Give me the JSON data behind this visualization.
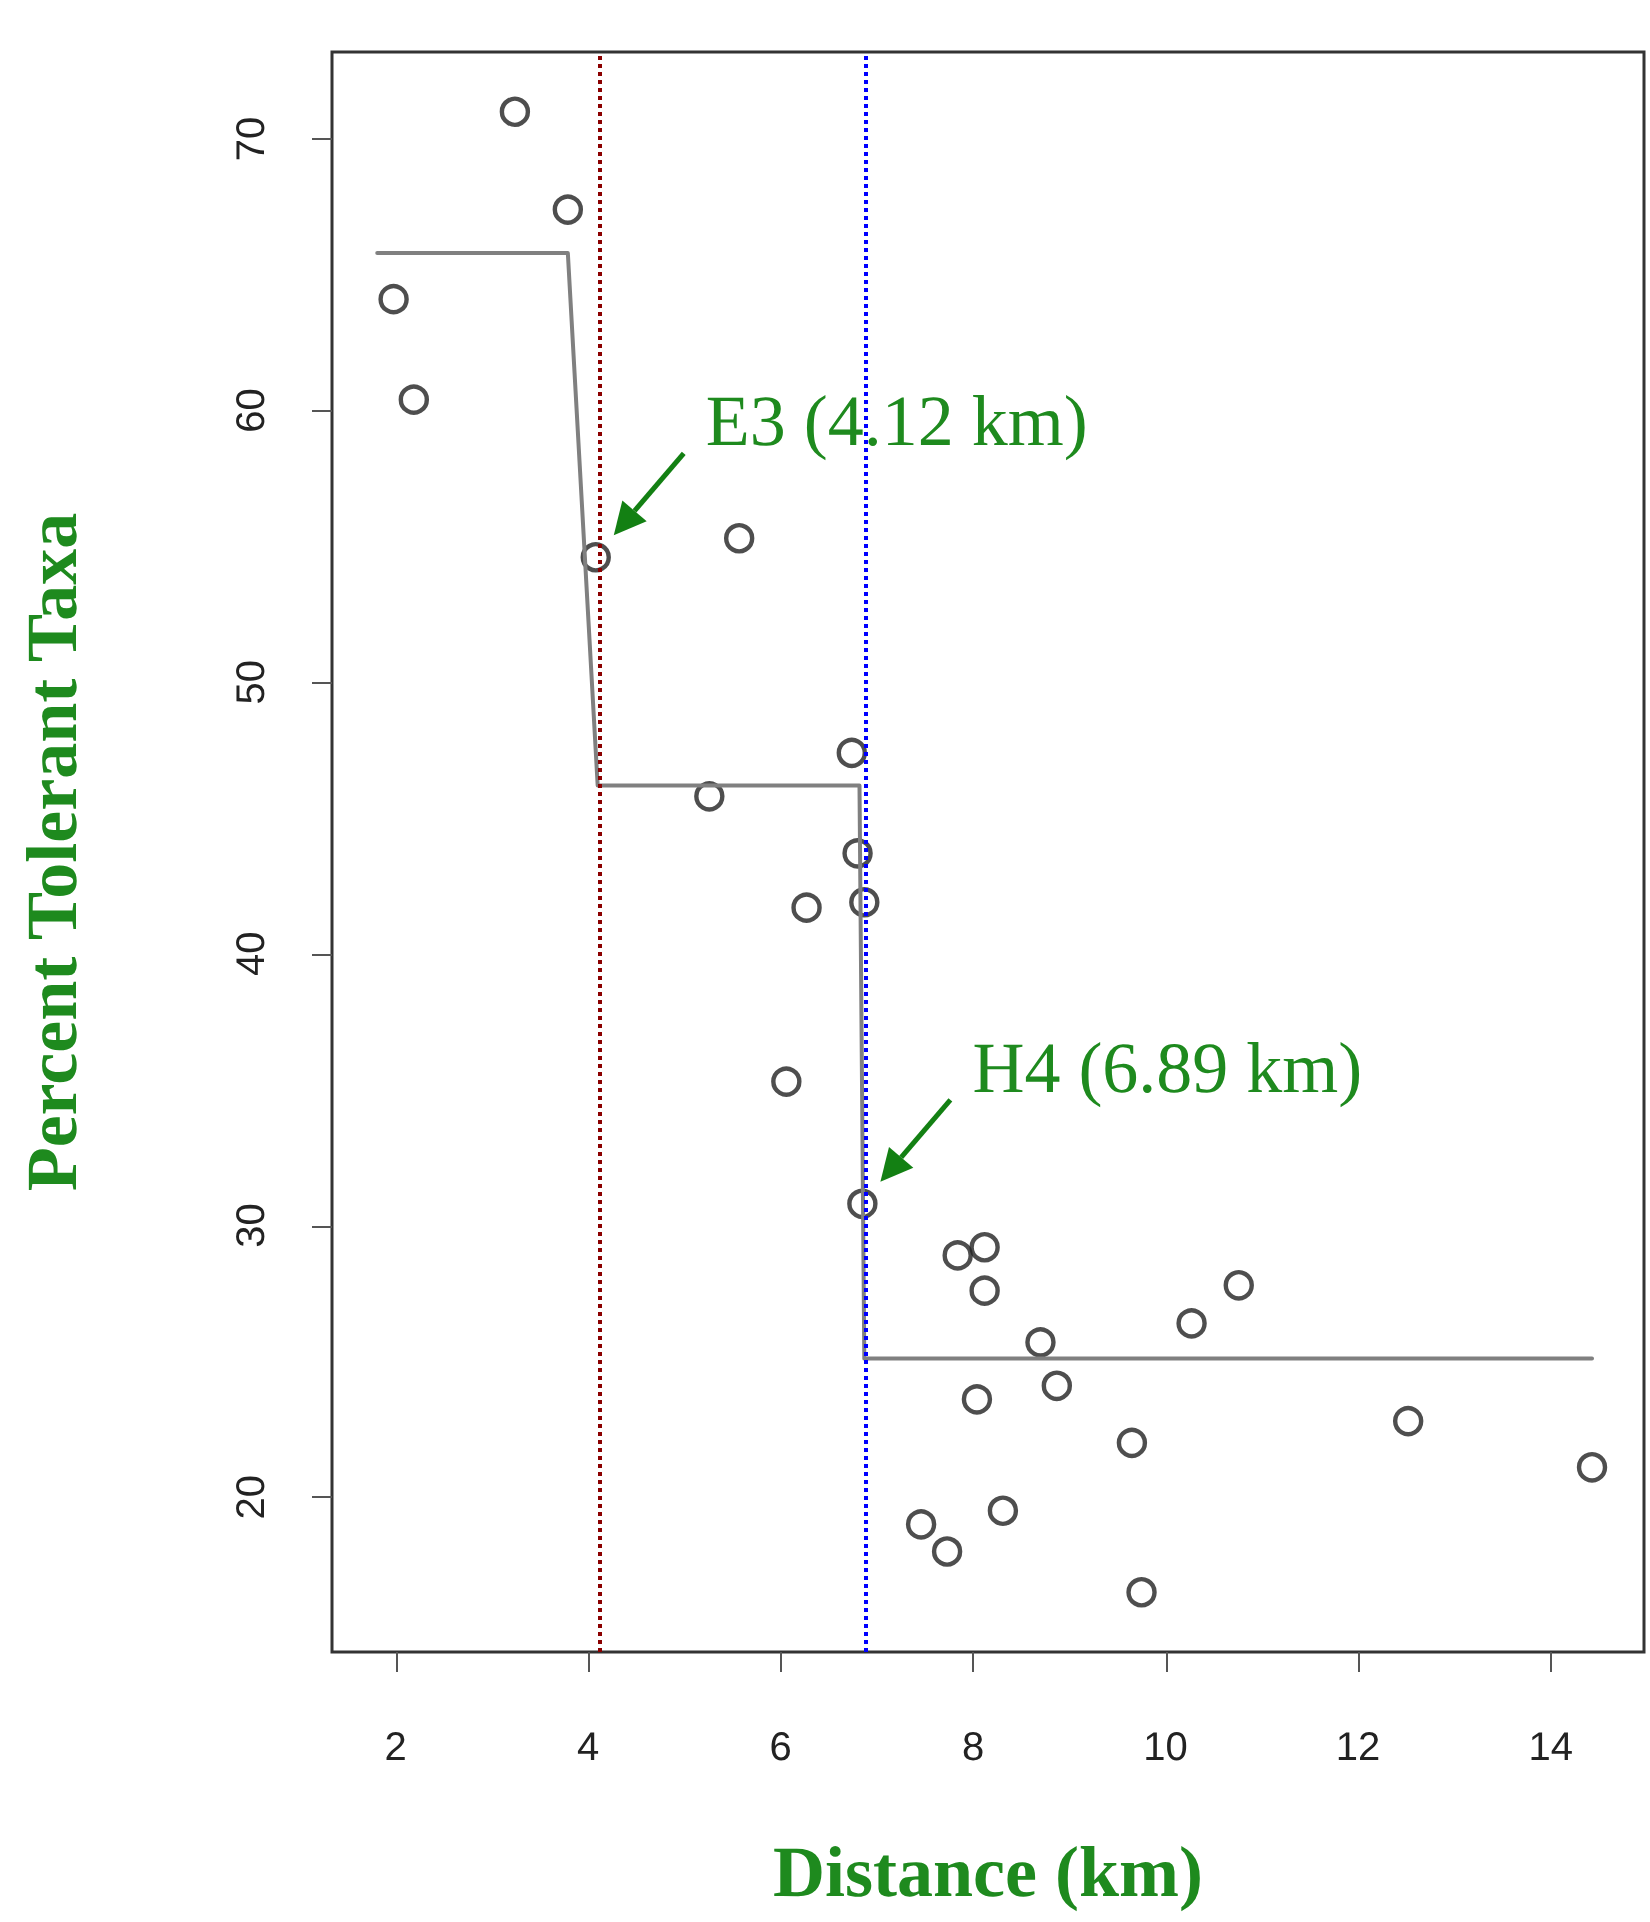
{
  "chart_data": {
    "type": "scatter",
    "xlabel": "Distance (km)",
    "ylabel": "Percent Tolerant Taxa",
    "xlim": [
      1.34,
      14.97
    ],
    "ylim": [
      14.3,
      73.2
    ],
    "xticks": [
      2,
      4,
      6,
      8,
      10,
      12,
      14
    ],
    "yticks": [
      20,
      30,
      40,
      50,
      60,
      70
    ],
    "marker": "circle",
    "series": [
      {
        "color": "#222222",
        "x": [
          1.98,
          2.19,
          3.24,
          3.79,
          4.08,
          5.57,
          5.26,
          6.74,
          6.8,
          6.87,
          6.27,
          6.06,
          6.85,
          7.84,
          8.12,
          8.12,
          8.7,
          8.87,
          8.04,
          10.27,
          10.76,
          9.65,
          12.52,
          14.43,
          7.46,
          7.73,
          8.31,
          9.75
        ],
        "values": [
          64.1,
          60.4,
          71.0,
          67.4,
          54.6,
          55.3,
          45.8,
          47.4,
          43.7,
          41.9,
          41.7,
          35.3,
          30.8,
          28.9,
          29.2,
          27.6,
          25.7,
          24.1,
          23.6,
          26.4,
          27.8,
          22.0,
          22.8,
          21.1,
          19.0,
          18.0,
          19.5,
          16.5
        ]
      },
      {
        "type": "line",
        "color": "#808080",
        "marker": "none",
        "x": [
          1.81,
          3.79,
          4.1,
          6.82,
          6.87,
          14.43
        ],
        "values": [
          65.8,
          65.8,
          46.2,
          46.2,
          25.1,
          25.1
        ]
      }
    ],
    "ref_lines": [
      {
        "axis": "x",
        "value": 4.12,
        "color": "#8b0000",
        "line_style": "dotted"
      },
      {
        "axis": "x",
        "value": 6.89,
        "color": "#0000ff",
        "line_style": "dotted"
      }
    ],
    "annotations": [
      {
        "text": "E3 (4.12 km)",
        "x": 4.08,
        "y": 54.6
      },
      {
        "text": "H4 (6.89 km)",
        "x": 6.85,
        "y": 30.8
      }
    ]
  }
}
